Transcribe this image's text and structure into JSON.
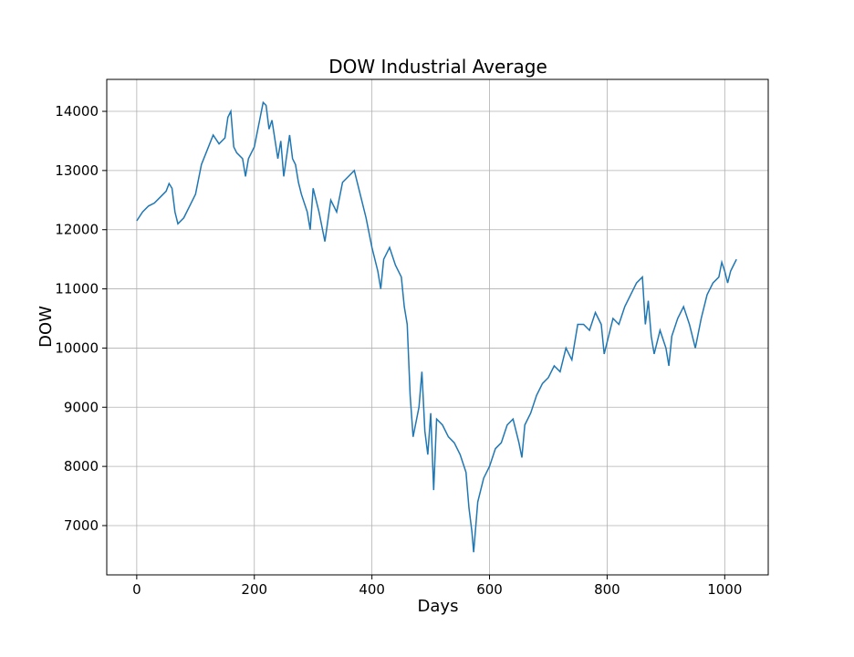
{
  "chart_data": {
    "type": "line",
    "title": "DOW Industrial Average",
    "x_label": "Days",
    "y_label": "DOW",
    "color": "#1f77b4",
    "grid": true,
    "x": [
      0,
      10,
      20,
      30,
      40,
      50,
      55,
      60,
      65,
      70,
      80,
      90,
      100,
      110,
      120,
      130,
      140,
      150,
      155,
      160,
      165,
      170,
      180,
      185,
      190,
      200,
      210,
      215,
      220,
      225,
      230,
      240,
      245,
      250,
      260,
      265,
      270,
      275,
      280,
      290,
      295,
      300,
      310,
      320,
      330,
      340,
      350,
      360,
      370,
      380,
      390,
      400,
      410,
      415,
      420,
      430,
      440,
      450,
      455,
      460,
      465,
      470,
      480,
      485,
      490,
      495,
      500,
      505,
      510,
      520,
      530,
      540,
      550,
      560,
      565,
      570,
      573,
      580,
      590,
      600,
      610,
      620,
      630,
      640,
      650,
      655,
      660,
      670,
      680,
      690,
      700,
      710,
      720,
      730,
      740,
      750,
      760,
      770,
      780,
      790,
      795,
      800,
      810,
      820,
      830,
      840,
      850,
      860,
      865,
      870,
      875,
      880,
      890,
      900,
      905,
      910,
      920,
      930,
      940,
      950,
      960,
      970,
      980,
      990,
      995,
      1000,
      1005,
      1010,
      1015,
      1020
    ],
    "values": [
      12150,
      12300,
      12400,
      12450,
      12550,
      12650,
      12780,
      12700,
      12300,
      12100,
      12200,
      12400,
      12600,
      13100,
      13350,
      13600,
      13450,
      13550,
      13900,
      14000,
      13400,
      13300,
      13200,
      12900,
      13200,
      13400,
      13900,
      14150,
      14100,
      13700,
      13850,
      13200,
      13500,
      12900,
      13600,
      13200,
      13100,
      12800,
      12600,
      12300,
      12000,
      12700,
      12300,
      11800,
      12500,
      12300,
      12800,
      12900,
      13000,
      12600,
      12200,
      11700,
      11300,
      11000,
      11500,
      11700,
      11400,
      11200,
      10700,
      10400,
      9200,
      8500,
      9000,
      9600,
      8600,
      8200,
      8900,
      7600,
      8800,
      8700,
      8500,
      8400,
      8200,
      7900,
      7300,
      6900,
      6550,
      7400,
      7800,
      8000,
      8300,
      8400,
      8700,
      8800,
      8400,
      8150,
      8700,
      8900,
      9200,
      9400,
      9500,
      9700,
      9600,
      10000,
      9800,
      10400,
      10400,
      10300,
      10600,
      10400,
      9900,
      10100,
      10500,
      10400,
      10700,
      10900,
      11100,
      11200,
      10400,
      10800,
      10200,
      9900,
      10300,
      10000,
      9700,
      10200,
      10500,
      10700,
      10400,
      10000,
      10500,
      10900,
      11100,
      11200,
      11450,
      11300,
      11100,
      11300,
      11400,
      11500
    ],
    "xlim": [
      -51,
      1074
    ],
    "xticks": [
      0,
      200,
      400,
      600,
      800,
      1000
    ],
    "ylim": [
      6167,
      14540
    ],
    "yticks": [
      7000,
      8000,
      9000,
      10000,
      11000,
      12000,
      13000,
      14000
    ]
  }
}
